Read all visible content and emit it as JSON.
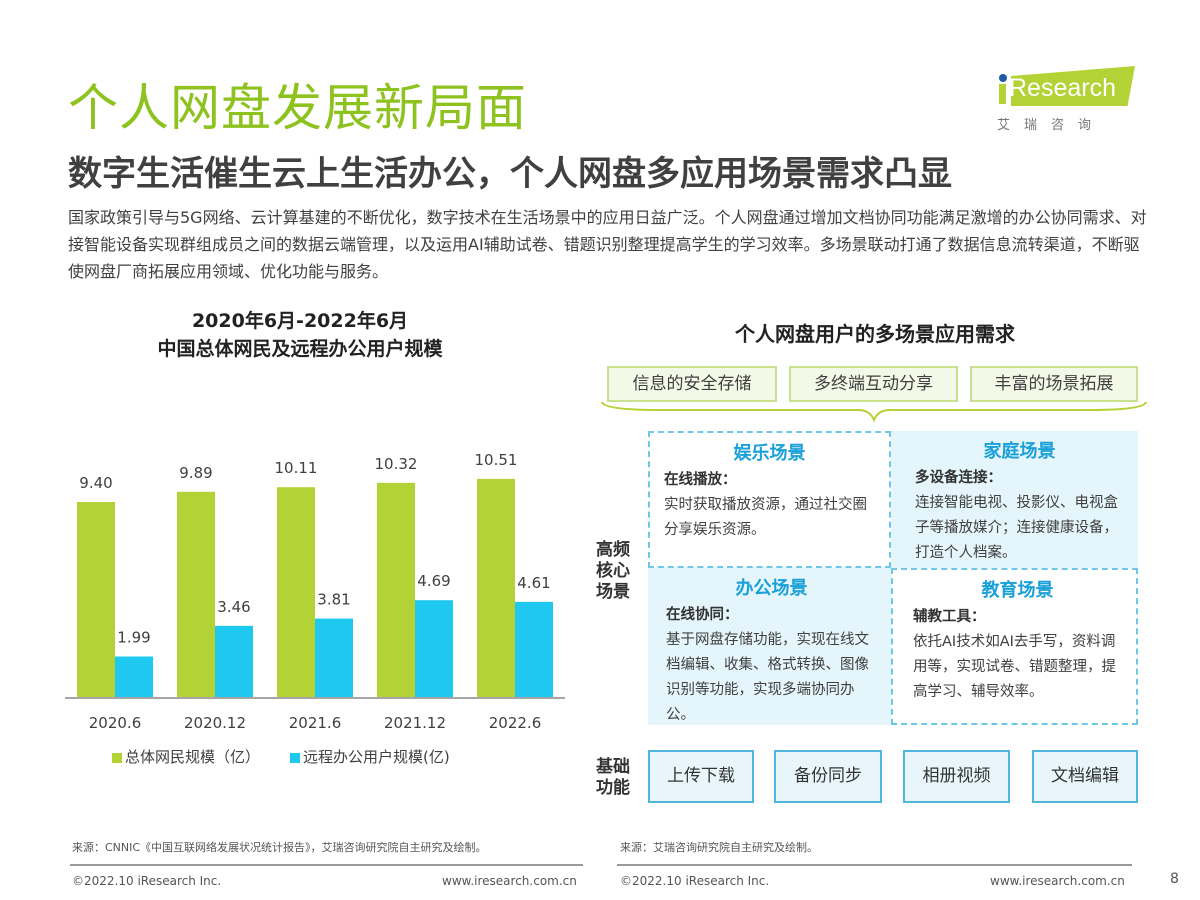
{
  "header": {
    "title": "个人网盘发展新局面",
    "subtitle": "数字生活催生云上生活办公，个人网盘多应用场景需求凸显",
    "intro": "国家政策引导与5G网络、云计算基建的不断优化，数字技术在生活场景中的应用日益广泛。个人网盘通过增加文档协同功能满足激增的办公协同需求、对接智能设备实现群组成员之间的数据云端管理，以及运用AI辅助试卷、错题识别整理提高学生的学习效率。多场景联动打通了数据信息流转渠道，不断驱使网盘厂商拓展应用领域、优化功能与服务。"
  },
  "logo": {
    "text": "iResearch",
    "cn": "艾瑞咨询"
  },
  "chart_data": {
    "type": "bar",
    "title_line1": "2020年6月-2022年6月",
    "title_line2": "中国总体网民及远程办公用户规模",
    "categories": [
      "2020.6",
      "2020.12",
      "2021.6",
      "2021.12",
      "2022.6"
    ],
    "series": [
      {
        "name": "总体网民规模（亿）",
        "values": [
          9.4,
          9.89,
          10.11,
          10.32,
          10.51
        ],
        "color": "#b2d235"
      },
      {
        "name": "远程办公用户规模(亿)",
        "values": [
          1.99,
          3.46,
          3.81,
          4.69,
          4.61
        ],
        "color": "#1fc8ef"
      }
    ],
    "ylim": [
      0,
      11
    ],
    "grid": false,
    "legend": "bottom"
  },
  "diagram": {
    "title": "个人网盘用户的多场景应用需求",
    "tags": [
      "信息的安全存储",
      "多终端互动分享",
      "丰富的场景拓展"
    ],
    "core_label": "高频核心场景",
    "base_label": "基础功能",
    "scenes": [
      {
        "title": "娱乐场景",
        "subtitle": "在线播放：",
        "text": "实时获取播放资源，通过社交圈分享娱乐资源。"
      },
      {
        "title": "家庭场景",
        "subtitle": "多设备连接：",
        "text": "连接智能电视、投影仪、电视盒子等播放媒介；连接健康设备，打造个人档案。"
      },
      {
        "title": "办公场景",
        "subtitle": "在线协同：",
        "text": "基于网盘存储功能，实现在线文档编辑、收集、格式转换、图像识别等功能，实现多端协同办公。"
      },
      {
        "title": "教育场景",
        "subtitle": "辅教工具：",
        "text": "依托AI技术如AI去手写，资料调用等，实现试卷、错题整理，提高学习、辅导效率。"
      }
    ],
    "basics": [
      "上传下载",
      "备份同步",
      "相册视频",
      "文档编辑"
    ]
  },
  "footer": {
    "source_left": "来源：CNNIC《中国互联网络发展状况统计报告》，艾瑞咨询研究院自主研究及绘制。",
    "source_right": "来源：艾瑞咨询研究院自主研究及绘制。",
    "copyright": "©2022.10 iResearch Inc.",
    "website": "www.iresearch.com.cn",
    "page": "8"
  }
}
